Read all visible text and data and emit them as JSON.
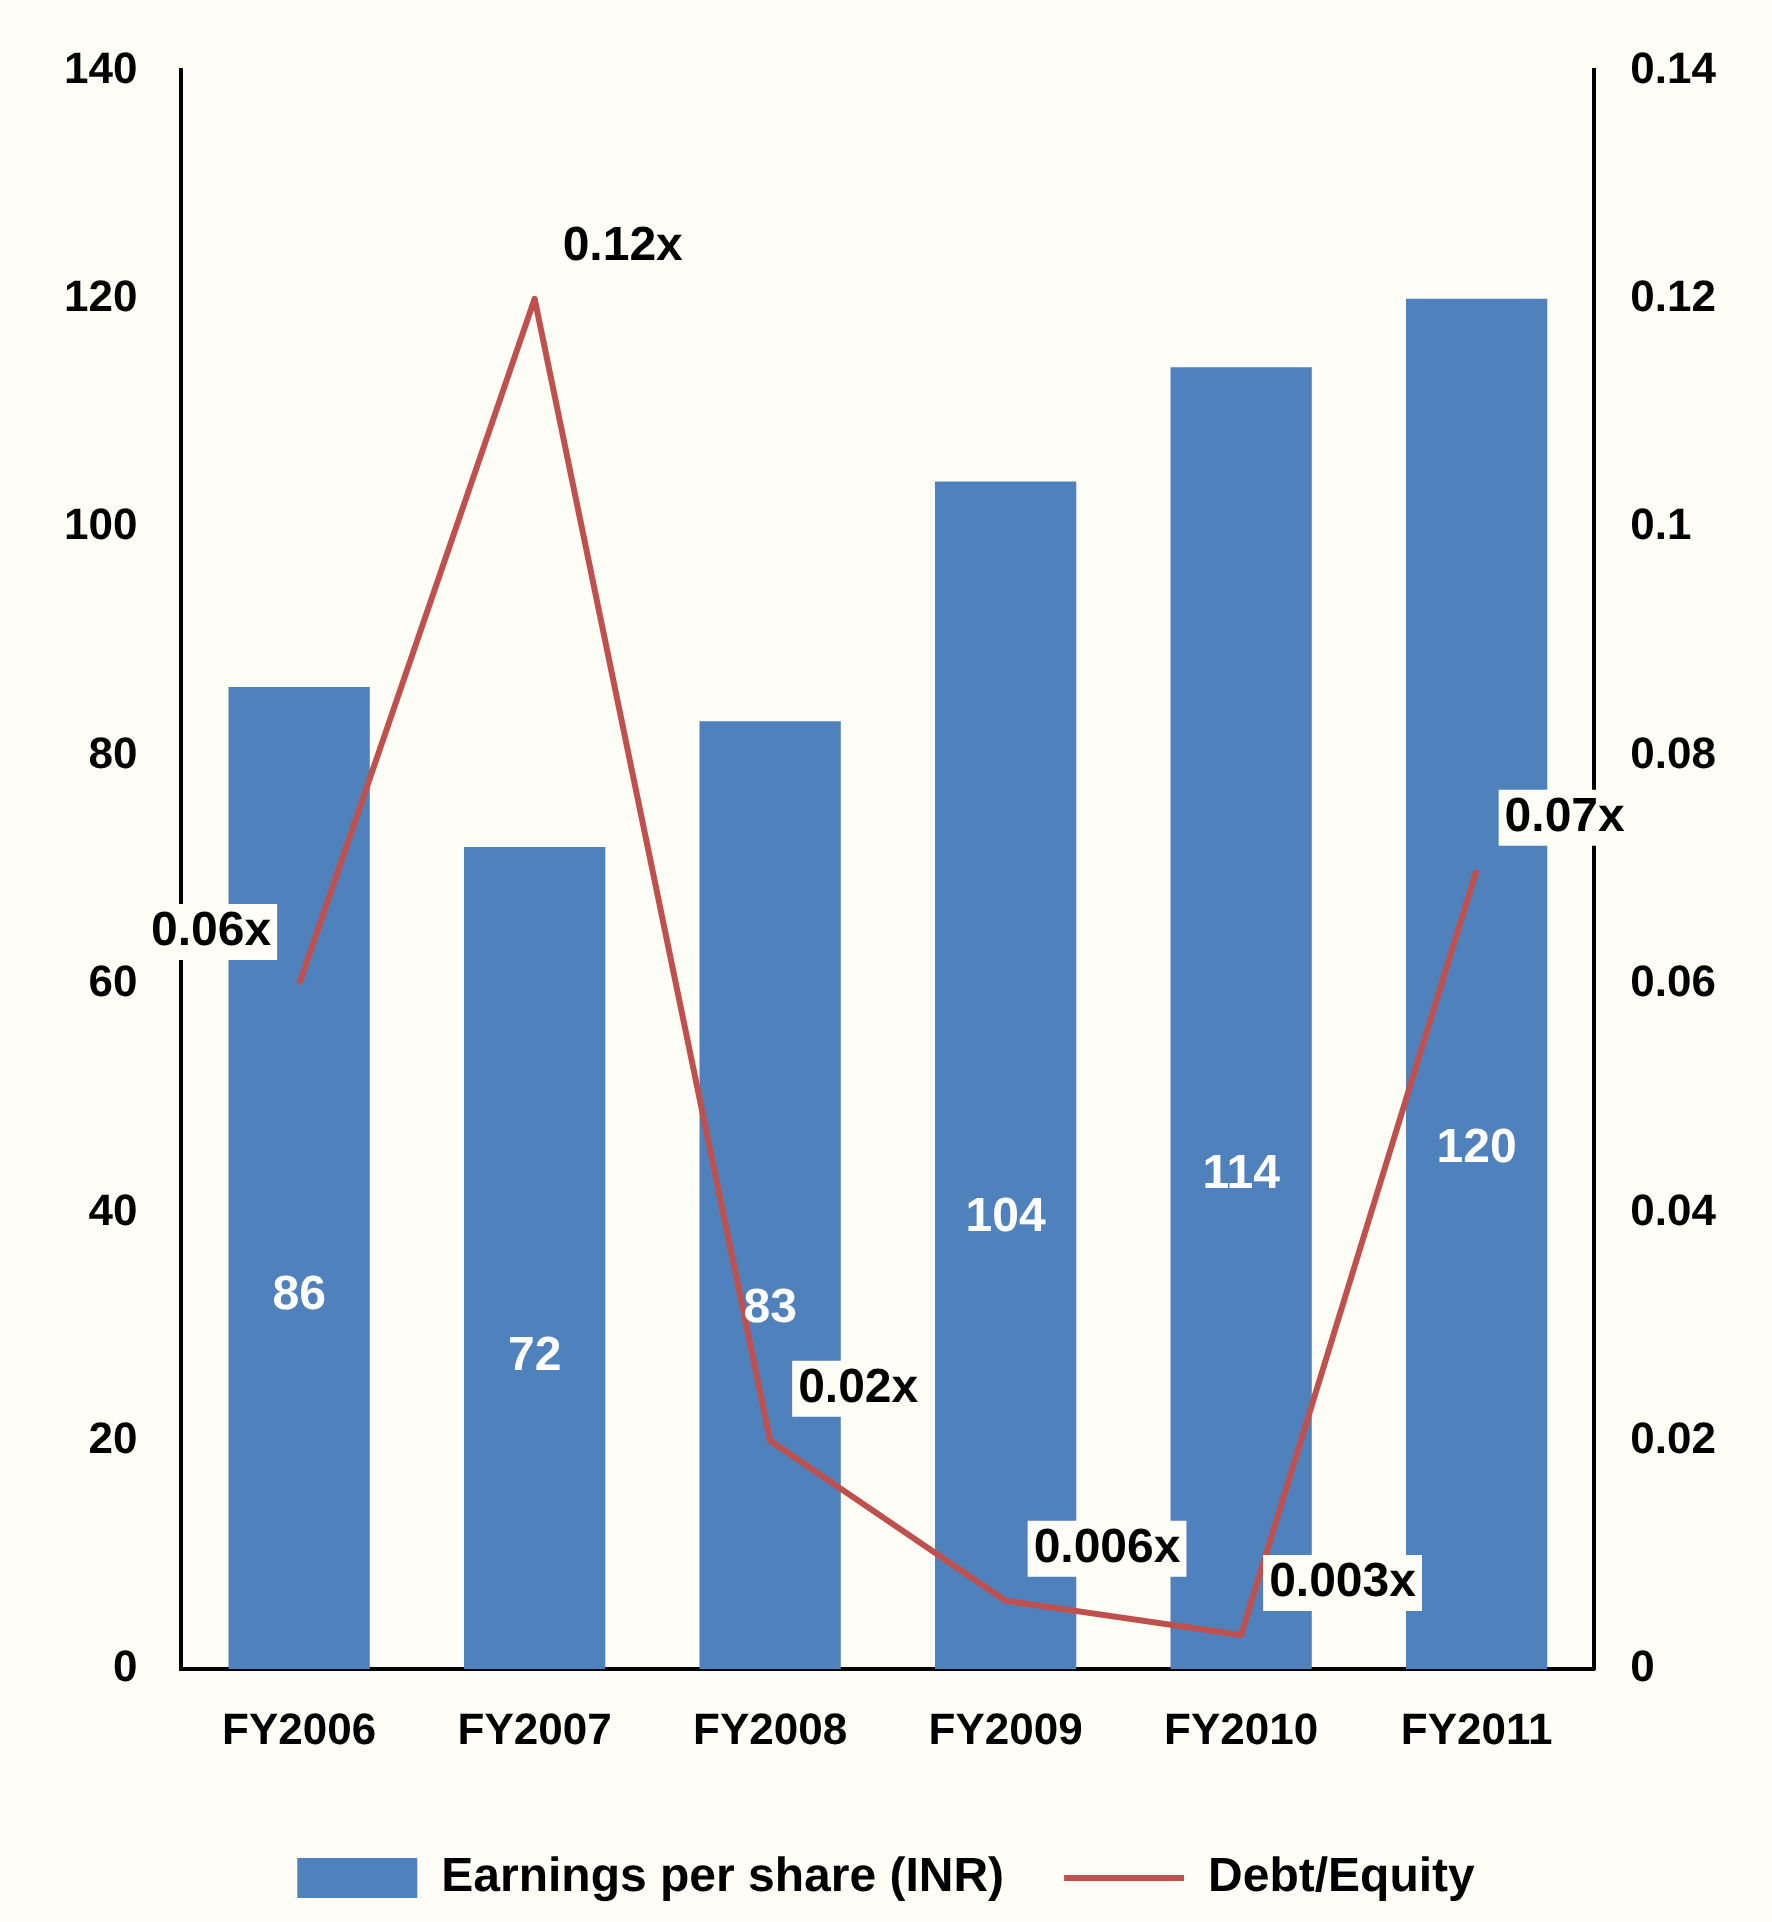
{
  "chart_data": {
    "type": "bar",
    "categories": [
      "FY2006",
      "FY2007",
      "FY2008",
      "FY2009",
      "FY2010",
      "FY2011"
    ],
    "series": [
      {
        "name": "Earnings per share (INR)",
        "color": "#4f81bd",
        "values": [
          86,
          72,
          83,
          104,
          114,
          120
        ],
        "value_labels": [
          "86",
          "72",
          "83",
          "104",
          "114",
          "120"
        ]
      },
      {
        "name": "Debt/Equity",
        "type": "line",
        "axis": "y2",
        "color": "#c0504d",
        "values": [
          0.06,
          0.12,
          0.02,
          0.006,
          0.003,
          0.07
        ],
        "value_labels": [
          "0.06x",
          "0.12x",
          "0.02x",
          "0.006x",
          "0.003x",
          "0.07x"
        ]
      }
    ],
    "ylim": [
      0,
      140
    ],
    "yticks": [
      0,
      20,
      40,
      60,
      80,
      100,
      120,
      140
    ],
    "y2lim": [
      0,
      0.14
    ],
    "y2ticks": [
      0,
      0.02,
      0.04,
      0.06,
      0.08,
      0.1,
      0.12,
      0.14
    ],
    "grid": false,
    "legend": "bottom",
    "marker": "none",
    "line_style": "solid"
  }
}
